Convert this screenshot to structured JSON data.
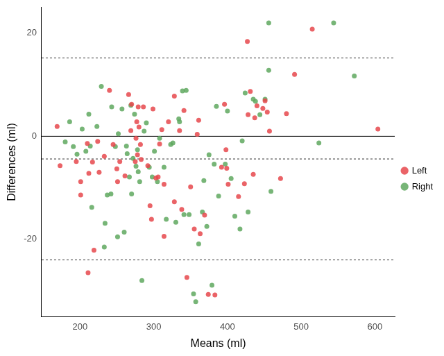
{
  "chart_data": {
    "type": "scatter",
    "x_label": "Means (ml)",
    "y_label": "Differences (ml)",
    "xlim": [
      148,
      627
    ],
    "ylim": [
      -35,
      25
    ],
    "xticks": [
      200,
      300,
      400,
      500,
      600
    ],
    "yticks": [
      -20,
      0,
      20
    ],
    "grid": false,
    "legend": "right",
    "marker": "circle",
    "hlines": [
      {
        "value": 0,
        "line_style": "solid"
      },
      {
        "value": -4.4,
        "line_style": "dotted"
      },
      {
        "value": 15.2,
        "line_style": "dotted"
      },
      {
        "value": -24,
        "line_style": "dotted"
      }
    ],
    "series": [
      {
        "name": "Left",
        "color": "#e6484c",
        "x": [
          169,
          173,
          195,
          201,
          201,
          210,
          212,
          211,
          217,
          219,
          224,
          226,
          233,
          240,
          245,
          250,
          251,
          254,
          261,
          266,
          269,
          270,
          275,
          276,
          277,
          278,
          279,
          280,
          282,
          283,
          286,
          292,
          295,
          297,
          299,
          303,
          306,
          308,
          311,
          314,
          314,
          320,
          328,
          328,
          335,
          338,
          341,
          345,
          427,
          350,
          355,
          359,
          361,
          363,
          369,
          374,
          383,
          392,
          396,
          398,
          399,
          401,
          415,
          423,
          428,
          431,
          435,
          437,
          440,
          448,
          451,
          454,
          457,
          515,
          472,
          491,
          480,
          604
        ],
        "values": [
          1.9,
          -5.7,
          -4.9,
          -8.8,
          -11.4,
          -1.4,
          -7.2,
          -26.5,
          -5.0,
          -22.1,
          -1.0,
          -7.0,
          -3.9,
          8.9,
          -1.6,
          -6.3,
          -8.8,
          -4.9,
          -7.7,
          8.1,
          1.1,
          6.2,
          -4.9,
          -0.4,
          2.8,
          -3.6,
          5.7,
          1.8,
          -1.6,
          -4.5,
          5.7,
          -5.7,
          -13.5,
          -16.1,
          5.3,
          -8.1,
          -7.9,
          -1.5,
          1.3,
          -9.3,
          -19.4,
          2.8,
          7.8,
          -12.7,
          1.1,
          -14.2,
          5.0,
          -27.4,
          18.4,
          -9.8,
          -18.0,
          0.4,
          3.1,
          -18.9,
          -15.3,
          -30.7,
          -30.8,
          -6.0,
          6.2,
          -2.6,
          -6.2,
          -9.3,
          -11.7,
          -9.2,
          4.2,
          8.7,
          -7.4,
          3.6,
          5.9,
          5.4,
          6.9,
          4.7,
          1.0,
          20.8,
          -8.2,
          12.0,
          4.4,
          1.4
        ]
      },
      {
        "name": "Right",
        "color": "#5fa85f",
        "x": [
          186,
          180,
          191,
          196,
          203,
          208,
          212,
          214,
          216,
          223,
          229,
          233,
          234,
          237,
          242,
          243,
          248,
          251,
          252,
          257,
          260,
          263,
          264,
          267,
          269,
          270,
          272,
          274,
          276,
          278,
          279,
          281,
          284,
          287,
          290,
          294,
          298,
          301,
          305,
          308,
          314,
          317,
          323,
          326,
          330,
          334,
          335,
          339,
          341,
          344,
          348,
          456,
          354,
          357,
          361,
          366,
          368,
          372,
          375,
          379,
          382,
          385,
          388,
          397,
          400,
          405,
          410,
          417,
          420,
          424,
          428,
          435,
          438,
          444,
          451,
          456,
          459,
          544,
          524,
          572
        ],
        "values": [
          2.8,
          -1.1,
          -2.0,
          -3.5,
          1.4,
          -2.9,
          4.3,
          -1.9,
          -13.8,
          1.9,
          9.7,
          -21.5,
          -16.9,
          -11.4,
          -11.2,
          5.7,
          -2.0,
          -19.5,
          0.5,
          5.3,
          -18.6,
          -1.9,
          -3.4,
          -7.9,
          6.0,
          -11.2,
          -4.3,
          4.3,
          -5.8,
          -2.6,
          -6.9,
          -8.8,
          -28.0,
          1.0,
          2.6,
          -6.0,
          -7.9,
          -2.9,
          -8.8,
          -0.4,
          -6.0,
          -16.1,
          -1.6,
          -1.3,
          -16.7,
          3.4,
          2.8,
          8.8,
          -15.2,
          8.9,
          -15.2,
          22.0,
          -30.6,
          -32.1,
          -20.9,
          -14.7,
          -8.6,
          -17.5,
          -3.6,
          -28.9,
          -5.4,
          5.8,
          -11.6,
          -5.4,
          4.9,
          -8.2,
          -15.5,
          -18.0,
          -0.9,
          8.4,
          -14.7,
          7.2,
          6.8,
          4.2,
          7.2,
          12.8,
          -10.7,
          22.0,
          -1.3,
          11.7
        ]
      }
    ]
  }
}
